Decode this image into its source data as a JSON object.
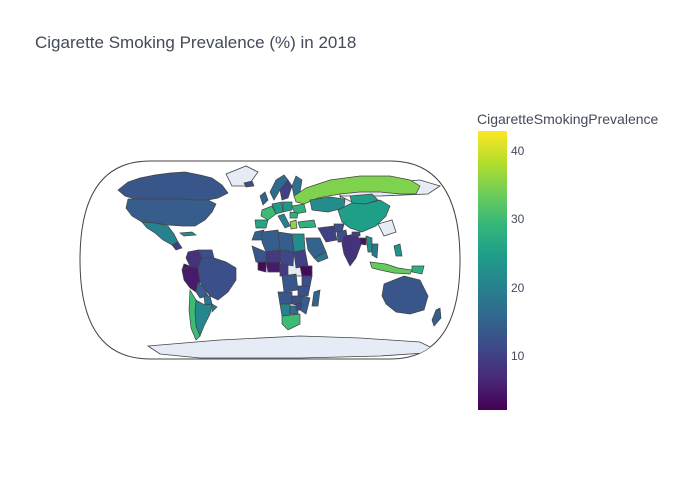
{
  "title": "Cigarette Smoking Prevalence (%) in 2018",
  "colors": {
    "land_no_data": "#e6ecf5",
    "country_border": "#444444",
    "text": "#444a5a",
    "colorscale": [
      "#440154",
      "#482878",
      "#3e4989",
      "#31688e",
      "#26828e",
      "#1f9e89",
      "#35b779",
      "#6ece58",
      "#b5de2b",
      "#fde725"
    ]
  },
  "chart_data": {
    "type": "choropleth",
    "projection": "natural earth",
    "title": "Cigarette Smoking Prevalence (%) in 2018",
    "colorbar": {
      "title": "CigaretteSmokingPrevalence",
      "min": 2,
      "max": 43,
      "ticks": [
        10,
        20,
        30,
        40
      ]
    },
    "regions": [
      {
        "name": "Canada",
        "value": 13
      },
      {
        "name": "United States",
        "value": 14
      },
      {
        "name": "Mexico",
        "value": 20
      },
      {
        "name": "Guatemala",
        "value": 10
      },
      {
        "name": "Cuba",
        "value": 22
      },
      {
        "name": "Colombia",
        "value": 8
      },
      {
        "name": "Venezuela",
        "value": 12
      },
      {
        "name": "Ecuador",
        "value": 4
      },
      {
        "name": "Peru",
        "value": 5
      },
      {
        "name": "Brazil",
        "value": 12
      },
      {
        "name": "Bolivia",
        "value": 14
      },
      {
        "name": "Paraguay",
        "value": 18
      },
      {
        "name": "Argentina",
        "value": 21
      },
      {
        "name": "Chile",
        "value": 30
      },
      {
        "name": "Uruguay",
        "value": 20
      },
      {
        "name": "Iceland",
        "value": 12
      },
      {
        "name": "Norway",
        "value": 16
      },
      {
        "name": "Sweden",
        "value": 10
      },
      {
        "name": "Finland",
        "value": 17
      },
      {
        "name": "United Kingdom",
        "value": 15
      },
      {
        "name": "France",
        "value": 30
      },
      {
        "name": "Spain",
        "value": 26
      },
      {
        "name": "Germany",
        "value": 24
      },
      {
        "name": "Italy",
        "value": 20
      },
      {
        "name": "Poland",
        "value": 24
      },
      {
        "name": "Ukraine",
        "value": 28
      },
      {
        "name": "Romania",
        "value": 28
      },
      {
        "name": "Greece",
        "value": 36
      },
      {
        "name": "Russia",
        "value": 35
      },
      {
        "name": "Kazakhstan",
        "value": 22
      },
      {
        "name": "Mongolia",
        "value": 25
      },
      {
        "name": "China",
        "value": 25
      },
      {
        "name": "Turkey",
        "value": 28
      },
      {
        "name": "Morocco",
        "value": 15
      },
      {
        "name": "Algeria",
        "value": 14
      },
      {
        "name": "Libya",
        "value": 14
      },
      {
        "name": "Egypt",
        "value": 22
      },
      {
        "name": "Mali",
        "value": 13
      },
      {
        "name": "Niger",
        "value": 9
      },
      {
        "name": "Chad",
        "value": 11
      },
      {
        "name": "Sudan",
        "value": 10
      },
      {
        "name": "Saudi Arabia",
        "value": 15
      },
      {
        "name": "Yemen",
        "value": 18
      },
      {
        "name": "Iran",
        "value": 10
      },
      {
        "name": "Afghanistan",
        "value": 12
      },
      {
        "name": "Pakistan",
        "value": 12
      },
      {
        "name": "India",
        "value": 8
      },
      {
        "name": "Nepal",
        "value": 10
      },
      {
        "name": "Bangladesh",
        "value": 4
      },
      {
        "name": "Myanmar",
        "value": 22
      },
      {
        "name": "Thailand",
        "value": 18
      },
      {
        "name": "Philippines",
        "value": 23
      },
      {
        "name": "Indonesia",
        "value": 33
      },
      {
        "name": "Papua New Guinea",
        "value": 28
      },
      {
        "name": "Nigeria",
        "value": 5
      },
      {
        "name": "Ghana",
        "value": 3
      },
      {
        "name": "Cameroon",
        "value": 9
      },
      {
        "name": "Ethiopia",
        "value": 3
      },
      {
        "name": "Kenya",
        "value": 12
      },
      {
        "name": "DR Congo",
        "value": 13
      },
      {
        "name": "Tanzania",
        "value": 12
      },
      {
        "name": "Angola",
        "value": 13
      },
      {
        "name": "Zambia",
        "value": 12
      },
      {
        "name": "Namibia",
        "value": 20
      },
      {
        "name": "Mozambique",
        "value": 14
      },
      {
        "name": "Botswana",
        "value": 17
      },
      {
        "name": "Zimbabwe",
        "value": 11
      },
      {
        "name": "South Africa",
        "value": 30
      },
      {
        "name": "Madagascar",
        "value": 15
      },
      {
        "name": "Australia",
        "value": 13
      },
      {
        "name": "New Zealand",
        "value": 14
      }
    ]
  }
}
